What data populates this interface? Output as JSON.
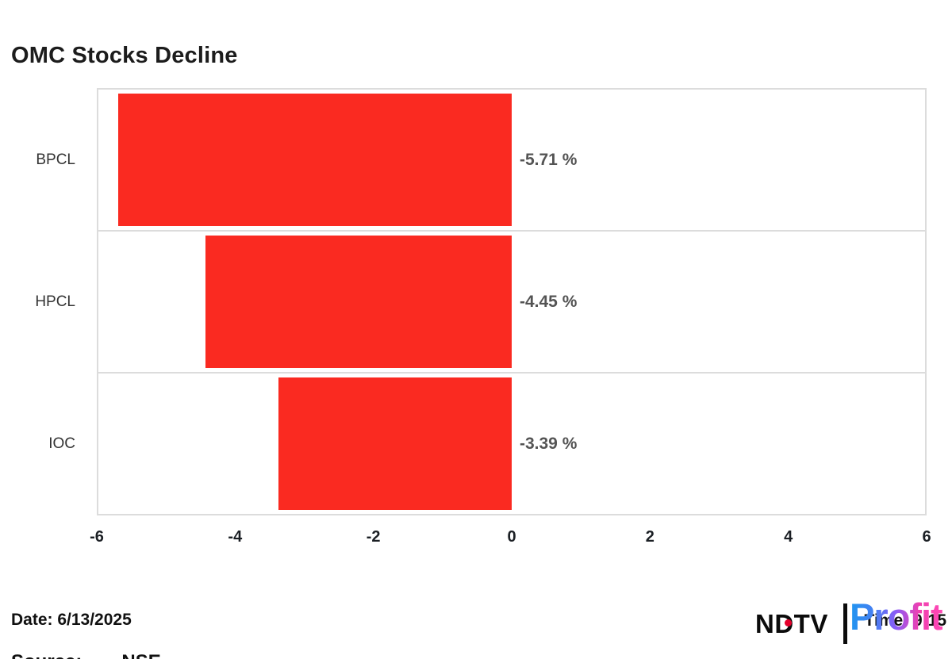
{
  "page_title": "OMC Stocks Decline",
  "chart_data": {
    "type": "bar",
    "orientation": "horizontal",
    "title": "OMC Stocks Decline",
    "categories": [
      "BPCL",
      "HPCL",
      "IOC"
    ],
    "values": [
      -5.71,
      -4.45,
      -3.39
    ],
    "value_labels": [
      "-5.71 %",
      "-4.45 %",
      "-3.39 %"
    ],
    "xlim": [
      -6,
      6
    ],
    "x_ticks": [
      "-6",
      "-4",
      "-2",
      "0",
      "2",
      "4",
      "6"
    ],
    "bar_color": "#fa2a21",
    "grid": "horizontal row separators only",
    "legend": "none",
    "label_color": "#545454",
    "category_color": "#333333"
  },
  "footer": {
    "date": "Date: 6/13/2025",
    "time": "Time: 9:15",
    "source_label": "Source:",
    "source_value": "NSE"
  },
  "branding": {
    "ndtv_text": "NDTV",
    "profit_text": "Profit",
    "ndtv_color": "#0b0b0b",
    "dot_color": "#e4002b",
    "profit_gradient": [
      "#1e96f0",
      "#8b5cf6",
      "#ff49b5"
    ]
  }
}
